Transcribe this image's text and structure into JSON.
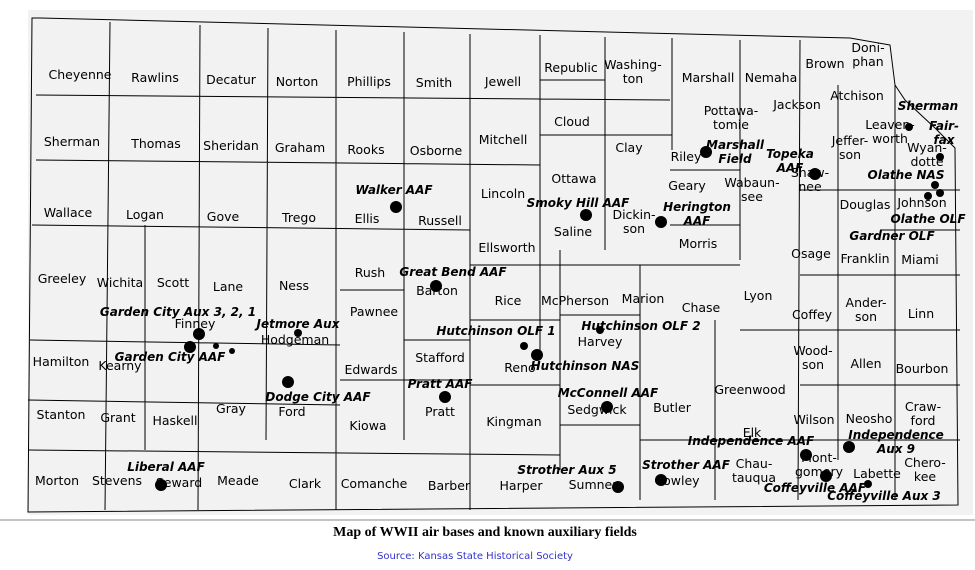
{
  "counties": [
    {
      "name": "Cheyenne"
    },
    {
      "name": "Rawlins"
    },
    {
      "name": "Decatur"
    },
    {
      "name": "Norton"
    },
    {
      "name": "Phillips"
    },
    {
      "name": "Smith"
    },
    {
      "name": "Jewell"
    },
    {
      "name": "Republic"
    },
    {
      "name": "Washing-\nton"
    },
    {
      "name": "Marshall"
    },
    {
      "name": "Nemaha"
    },
    {
      "name": "Brown"
    },
    {
      "name": "Doni-\nphan"
    },
    {
      "name": "Sherman"
    },
    {
      "name": "Thomas"
    },
    {
      "name": "Sheridan"
    },
    {
      "name": "Graham"
    },
    {
      "name": "Rooks"
    },
    {
      "name": "Osborne"
    },
    {
      "name": "Mitchell"
    },
    {
      "name": "Cloud"
    },
    {
      "name": "Clay"
    },
    {
      "name": "Pottawa-\ntomie"
    },
    {
      "name": "Jackson"
    },
    {
      "name": "Atchison"
    },
    {
      "name": "Riley"
    },
    {
      "name": "Jeffer-\nson"
    },
    {
      "name": "Leaven-\nworth"
    },
    {
      "name": "Wyan-\ndotte"
    },
    {
      "name": "Shaw-\nnee"
    },
    {
      "name": "Wallace"
    },
    {
      "name": "Logan"
    },
    {
      "name": "Gove"
    },
    {
      "name": "Trego"
    },
    {
      "name": "Ellis"
    },
    {
      "name": "Russell"
    },
    {
      "name": "Lincoln"
    },
    {
      "name": "Ottawa"
    },
    {
      "name": "Saline"
    },
    {
      "name": "Dickin-\nson"
    },
    {
      "name": "Geary"
    },
    {
      "name": "Morris"
    },
    {
      "name": "Wabaun-\nsee"
    },
    {
      "name": "Douglas"
    },
    {
      "name": "Johnson"
    },
    {
      "name": "Osage"
    },
    {
      "name": "Franklin"
    },
    {
      "name": "Miami"
    },
    {
      "name": "Greeley"
    },
    {
      "name": "Wichita"
    },
    {
      "name": "Scott"
    },
    {
      "name": "Lane"
    },
    {
      "name": "Ness"
    },
    {
      "name": "Rush"
    },
    {
      "name": "Barton"
    },
    {
      "name": "Ellsworth"
    },
    {
      "name": "Rice"
    },
    {
      "name": "McPherson"
    },
    {
      "name": "Marion"
    },
    {
      "name": "Chase"
    },
    {
      "name": "Lyon"
    },
    {
      "name": "Coffey"
    },
    {
      "name": "Ander-\nson"
    },
    {
      "name": "Linn"
    },
    {
      "name": "Hamilton"
    },
    {
      "name": "Kearny"
    },
    {
      "name": "Finney"
    },
    {
      "name": "Hodgeman"
    },
    {
      "name": "Pawnee"
    },
    {
      "name": "Stafford"
    },
    {
      "name": "Edwards"
    },
    {
      "name": "Reno"
    },
    {
      "name": "Harvey"
    },
    {
      "name": "Butler"
    },
    {
      "name": "Greenwood"
    },
    {
      "name": "Wood-\nson"
    },
    {
      "name": "Allen"
    },
    {
      "name": "Bourbon"
    },
    {
      "name": "Stanton"
    },
    {
      "name": "Grant"
    },
    {
      "name": "Haskell"
    },
    {
      "name": "Gray"
    },
    {
      "name": "Ford"
    },
    {
      "name": "Kiowa"
    },
    {
      "name": "Pratt"
    },
    {
      "name": "Kingman"
    },
    {
      "name": "Sedgwick"
    },
    {
      "name": "Elk"
    },
    {
      "name": "Wilson"
    },
    {
      "name": "Neosho"
    },
    {
      "name": "Craw-\nford"
    },
    {
      "name": "Morton"
    },
    {
      "name": "Stevens"
    },
    {
      "name": "Seward"
    },
    {
      "name": "Meade"
    },
    {
      "name": "Clark"
    },
    {
      "name": "Comanche"
    },
    {
      "name": "Barber"
    },
    {
      "name": "Harper"
    },
    {
      "name": "Sumner"
    },
    {
      "name": "Cowley"
    },
    {
      "name": "Chau-\ntauqua"
    },
    {
      "name": "Mont-\ngomery"
    },
    {
      "name": "Labette"
    },
    {
      "name": "Chero-\nkee"
    }
  ],
  "air_fields": [
    {
      "label": "Walker AAF"
    },
    {
      "label": "Smoky Hill AAF"
    },
    {
      "label": "Herington\nAAF"
    },
    {
      "label": "Marshall\nField"
    },
    {
      "label": "Topeka\nAAF"
    },
    {
      "label": "Sherman"
    },
    {
      "label": "Fair-\nfax"
    },
    {
      "label": "Olathe NAS"
    },
    {
      "label": "Olathe OLF"
    },
    {
      "label": "Gardner OLF"
    },
    {
      "label": "Great Bend AAF"
    },
    {
      "label": "Garden City Aux 3, 2, 1"
    },
    {
      "label": "Garden City AAF"
    },
    {
      "label": "Jetmore Aux"
    },
    {
      "label": "Dodge City AAF"
    },
    {
      "label": "Hutchinson OLF 1"
    },
    {
      "label": "Hutchinson OLF 2"
    },
    {
      "label": "Hutchinson NAS"
    },
    {
      "label": "Pratt AAF"
    },
    {
      "label": "McConnell AAF"
    },
    {
      "label": "Liberal AAF"
    },
    {
      "label": "Strother Aux 5"
    },
    {
      "label": "Strother AAF"
    },
    {
      "label": "Independence AAF"
    },
    {
      "label": "Independence\nAux 9"
    },
    {
      "label": "Coffeyville AAF"
    },
    {
      "label": "Coffeyville Aux 3"
    }
  ],
  "caption": "Map of WWII air bases and known auxiliary fields",
  "source": "Source: Kansas State Historical Society"
}
